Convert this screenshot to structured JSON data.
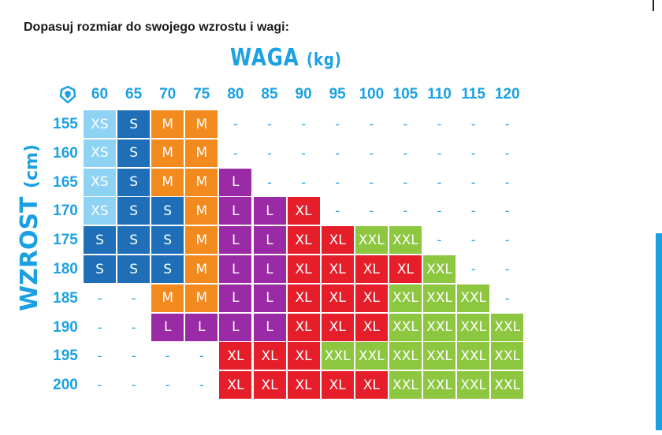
{
  "intro": "Dopasuj rozmiar do swojego wzrostu i wagi:",
  "x_title": "WAGA",
  "x_unit": "(kg)",
  "y_title": "WZROST",
  "y_unit": "(cm)",
  "colors": {
    "XS": "#8fd3f4",
    "S": "#1e6fb8",
    "M": "#f28a1e",
    "L": "#9b2aa6",
    "XL": "#e61e2a",
    "XXL": "#8dc63f",
    "label": "#1ba1e2"
  },
  "chart_data": {
    "type": "table",
    "x": [
      60,
      65,
      70,
      75,
      80,
      85,
      90,
      95,
      100,
      105,
      110,
      115,
      120
    ],
    "y": [
      155,
      160,
      165,
      170,
      175,
      180,
      185,
      190,
      195,
      200
    ],
    "xlabel": "WAGA (kg)",
    "ylabel": "WZROST (cm)",
    "cells": [
      [
        "XS",
        "S",
        "M",
        "M",
        "-",
        "-",
        "-",
        "-",
        "-",
        "-",
        "-",
        "-",
        "-"
      ],
      [
        "XS",
        "S",
        "M",
        "M",
        "-",
        "-",
        "-",
        "-",
        "-",
        "-",
        "-",
        "-",
        "-"
      ],
      [
        "XS",
        "S",
        "M",
        "M",
        "L",
        "-",
        "-",
        "-",
        "-",
        "-",
        "-",
        "-",
        "-"
      ],
      [
        "XS",
        "S",
        "S",
        "M",
        "L",
        "L",
        "XL",
        "-",
        "-",
        "-",
        "-",
        "-",
        "-"
      ],
      [
        "S",
        "S",
        "S",
        "M",
        "L",
        "L",
        "XL",
        "XL",
        "XXL",
        "XXL",
        "-",
        "-",
        "-"
      ],
      [
        "S",
        "S",
        "S",
        "M",
        "L",
        "L",
        "XL",
        "XL",
        "XL",
        "XL",
        "XXL",
        "-",
        "-"
      ],
      [
        "-",
        "-",
        "M",
        "M",
        "L",
        "L",
        "XL",
        "XL",
        "XL",
        "XXL",
        "XXL",
        "XXL",
        "-"
      ],
      [
        "-",
        "-",
        "L",
        "L",
        "L",
        "L",
        "XL",
        "XL",
        "XL",
        "XXL",
        "XXL",
        "XXL",
        "XXL"
      ],
      [
        "-",
        "-",
        "-",
        "-",
        "XL",
        "XL",
        "XL",
        "XXL",
        "XXL",
        "XXL",
        "XXL",
        "XXL",
        "XXL"
      ],
      [
        "-",
        "-",
        "-",
        "-",
        "XL",
        "XL",
        "XL",
        "XL",
        "XL",
        "XXL",
        "XXL",
        "XXL",
        "XXL"
      ]
    ]
  }
}
